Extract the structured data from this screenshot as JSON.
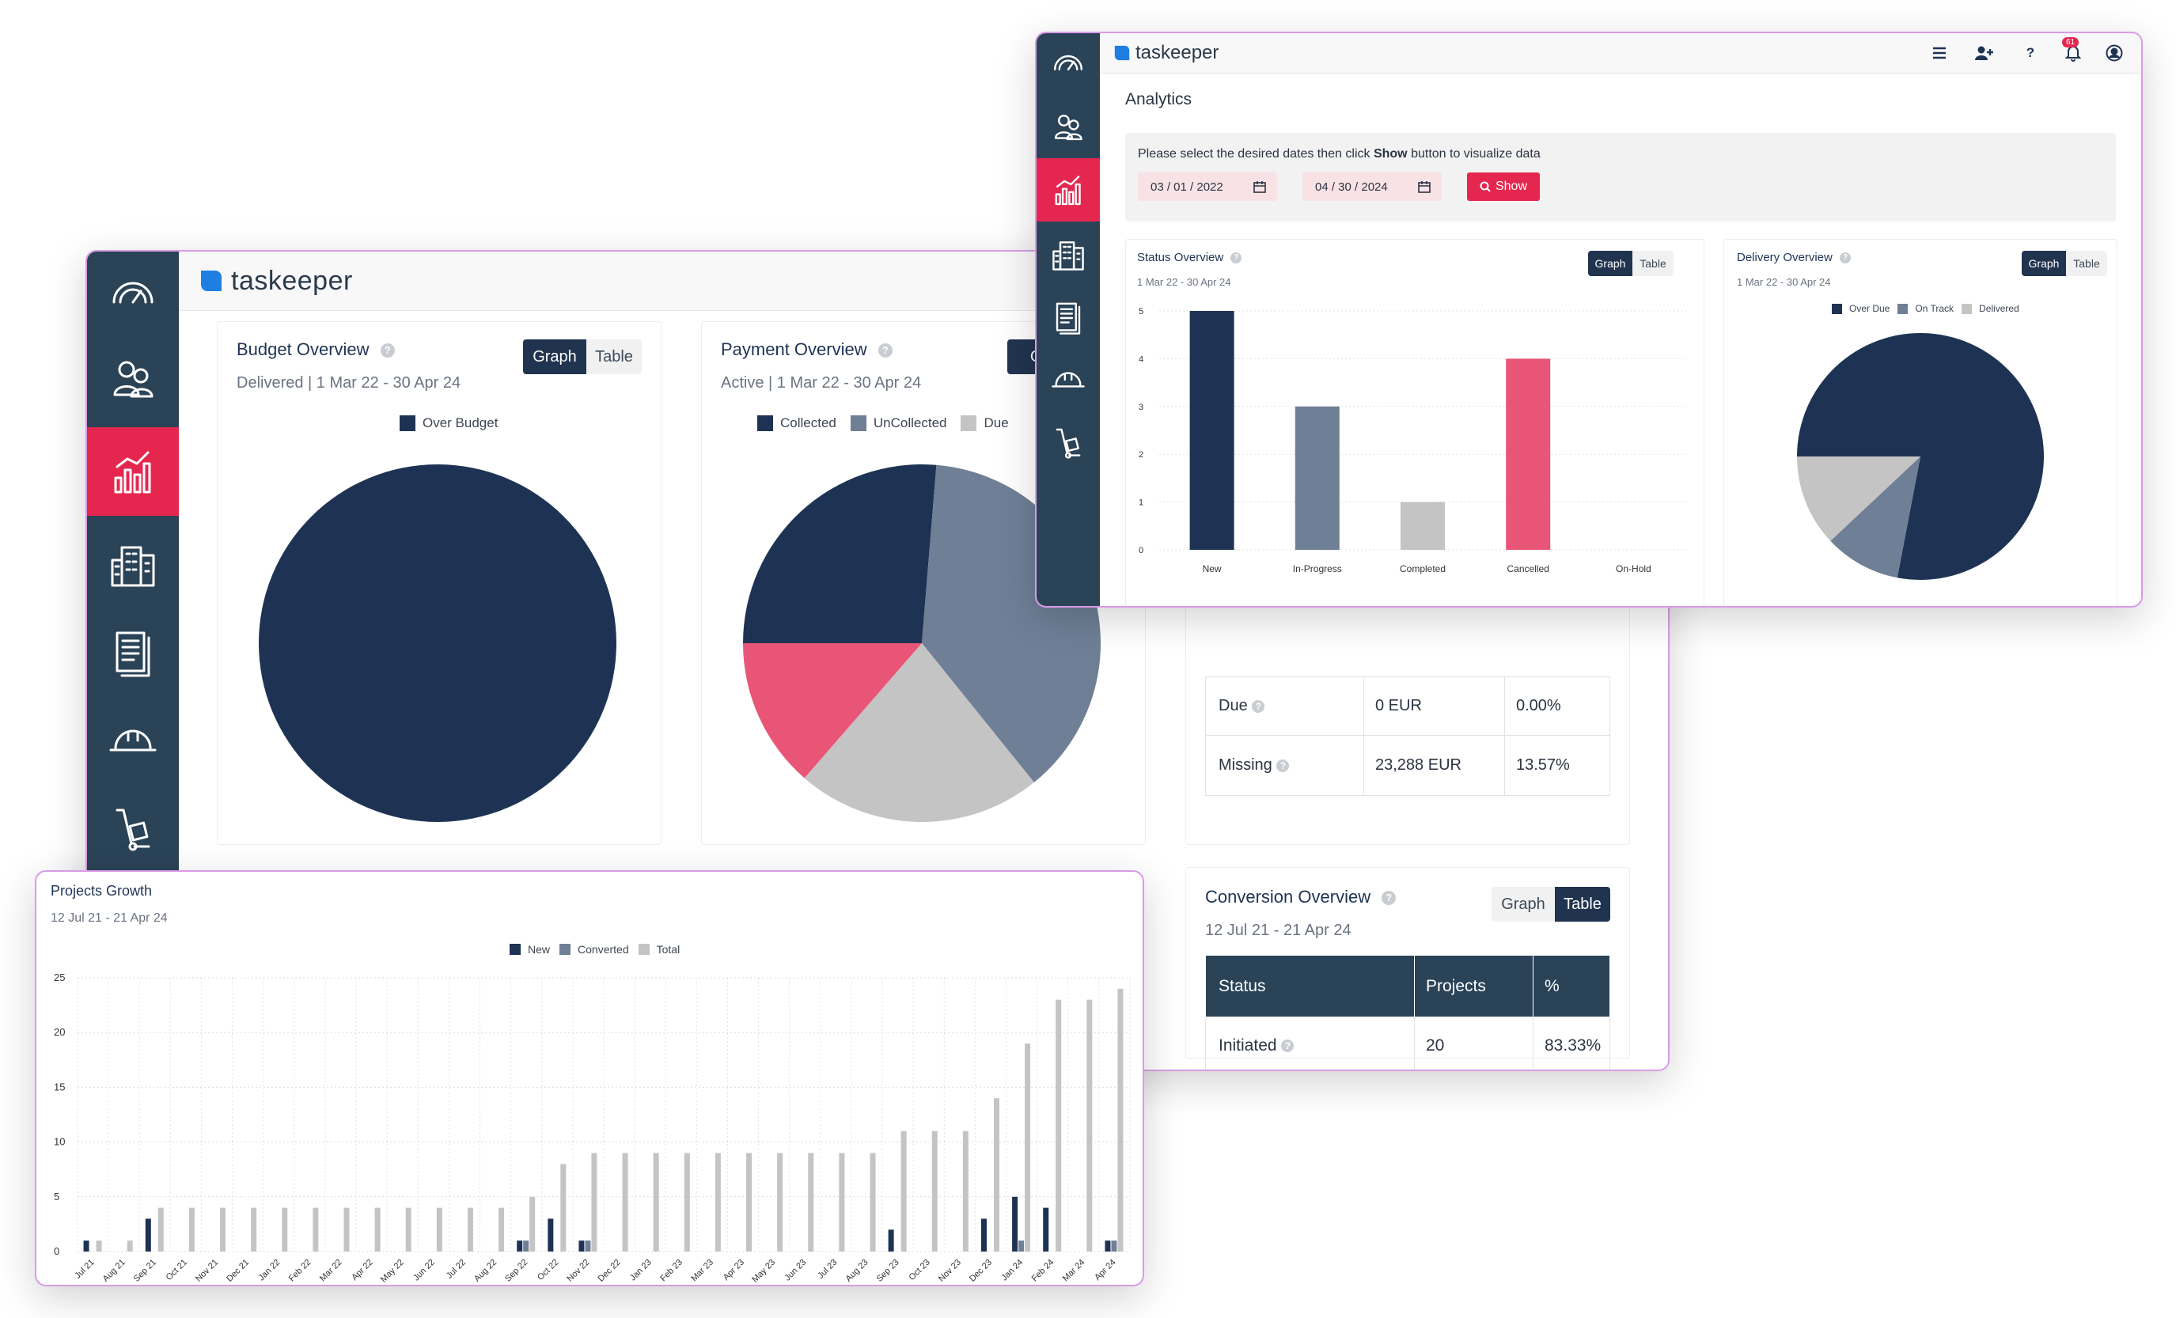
{
  "brand": "taskeeper",
  "colors": {
    "navy": "#1e3354",
    "slate": "#6f7f96",
    "grey": "#c4c4c4",
    "pink": "#e95577",
    "red": "#e5274f",
    "sidebar": "#2b4357"
  },
  "sidebar_icons": [
    "dashboard-gauge-icon",
    "users-icon",
    "analytics-chart-icon",
    "buildings-icon",
    "documents-icon",
    "hard-hat-icon",
    "hand-truck-icon"
  ],
  "back": {
    "budget": {
      "title": "Budget Overview",
      "subtitle": "Delivered | 1 Mar 22 - 30 Apr 24",
      "graph": "Graph",
      "table": "Table",
      "legend": [
        {
          "label": "Over Budget",
          "color": "#1e3354"
        }
      ],
      "chart_data": {
        "type": "pie",
        "labels": [
          "Over Budget"
        ],
        "values": [
          100
        ],
        "colors": [
          "#1e3354"
        ]
      }
    },
    "payment": {
      "title": "Payment Overview",
      "subtitle": "Active | 1 Mar 22 - 30 Apr 24",
      "graph": "Gr",
      "legend": [
        {
          "label": "Collected",
          "color": "#1e3354"
        },
        {
          "label": "UnCollected",
          "color": "#6f7f96"
        },
        {
          "label": "Due",
          "color": "#c4c4c4"
        }
      ],
      "chart_data": {
        "type": "pie",
        "labels": [
          "Collected",
          "UnCollected",
          "Due",
          "Missing"
        ],
        "values": [
          26.3,
          37.9,
          22.2,
          13.6
        ],
        "colors": [
          "#1e3354",
          "#6f7f96",
          "#c4c4c4",
          "#e95577"
        ]
      }
    },
    "payment_table": {
      "rows": [
        {
          "status": "Due",
          "amount": "0 EUR",
          "pct": "0.00%"
        },
        {
          "status": "Missing",
          "amount": "23,288 EUR",
          "pct": "13.57%"
        }
      ]
    },
    "conversion": {
      "title": "Conversion Overview",
      "subtitle": "12 Jul 21 - 21 Apr 24",
      "graph": "Graph",
      "table": "Table",
      "headers": [
        "Status",
        "Projects",
        "%"
      ],
      "rows": [
        {
          "status": "Initiated",
          "projects": "20",
          "pct": "83.33%"
        }
      ]
    }
  },
  "front": {
    "header_icons": [
      "menu-icon",
      "add-user-icon",
      "help-icon",
      "bell-icon",
      "account-icon"
    ],
    "badge": "61",
    "help": "?",
    "page_title": "Analytics",
    "filter": {
      "text_before": "Please select the desired dates then click ",
      "text_bold": "Show",
      "text_after": " button to visualize data",
      "start_date": "03 / 01 / 2022",
      "end_date": "04 / 30 / 2024",
      "show_button": "Show"
    },
    "status": {
      "title": "Status Overview",
      "subtitle": "1 Mar 22 - 30 Apr 24",
      "graph": "Graph",
      "table": "Table",
      "chart_data": {
        "type": "bar",
        "categories": [
          "New",
          "In-Progress",
          "Completed",
          "Cancelled",
          "On-Hold"
        ],
        "values": [
          5,
          3,
          1,
          4,
          0
        ],
        "colors": [
          "#1e3354",
          "#6f7f96",
          "#c4c4c4",
          "#e95577",
          "#c4c4c4"
        ],
        "ylim": [
          0,
          5
        ],
        "yticks": [
          0,
          1,
          2,
          3,
          4,
          5
        ]
      }
    },
    "delivery": {
      "title": "Delivery Overview",
      "subtitle": "1 Mar 22 - 30 Apr 24",
      "graph": "Graph",
      "table": "Table",
      "legend": [
        {
          "label": "Over Due",
          "color": "#1e3354"
        },
        {
          "label": "On Track",
          "color": "#6f7f96"
        },
        {
          "label": "Delivered",
          "color": "#c4c4c4"
        }
      ],
      "chart_data": {
        "type": "pie",
        "labels": [
          "Over Due",
          "On Track",
          "Delivered"
        ],
        "values": [
          78,
          10,
          12
        ],
        "colors": [
          "#1e3354",
          "#6f7f96",
          "#c4c4c4"
        ]
      }
    }
  },
  "growth": {
    "title": "Projects Growth",
    "subtitle": "12 Jul 21 - 21 Apr 24",
    "legend": [
      {
        "label": "New",
        "color": "#1e3354"
      },
      {
        "label": "Converted",
        "color": "#6f7f96"
      },
      {
        "label": "Total",
        "color": "#c4c4c4"
      }
    ],
    "chart_data": {
      "type": "bar",
      "ylim": [
        0,
        25
      ],
      "yticks": [
        0,
        5,
        10,
        15,
        20,
        25
      ],
      "categories": [
        "Jul 21",
        "Aug 21",
        "Sep 21",
        "Oct 21",
        "Nov 21",
        "Dec 21",
        "Jan 22",
        "Feb 22",
        "Mar 22",
        "Apr 22",
        "May 22",
        "Jun 22",
        "Jul 22",
        "Aug 22",
        "Sep 22",
        "Oct 22",
        "Nov 22",
        "Dec 22",
        "Jan 23",
        "Feb 23",
        "Mar 23",
        "Apr 23",
        "May 23",
        "Jun 23",
        "Jul 23",
        "Aug 23",
        "Sep 23",
        "Oct 23",
        "Nov 23",
        "Dec 23",
        "Jan 24",
        "Feb 24",
        "Mar 24",
        "Apr 24"
      ],
      "series": [
        {
          "name": "New",
          "color": "#1e3354",
          "values": [
            1,
            0,
            3,
            0,
            0,
            0,
            0,
            0,
            0,
            0,
            0,
            0,
            0,
            0,
            1,
            3,
            1,
            0,
            0,
            0,
            0,
            0,
            0,
            0,
            0,
            0,
            2,
            0,
            0,
            3,
            5,
            4,
            0,
            1
          ]
        },
        {
          "name": "Converted",
          "color": "#6f7f96",
          "values": [
            0,
            0,
            0,
            0,
            0,
            0,
            0,
            0,
            0,
            0,
            0,
            0,
            0,
            0,
            1,
            0,
            1,
            0,
            0,
            0,
            0,
            0,
            0,
            0,
            0,
            0,
            0,
            0,
            0,
            0,
            1,
            0,
            0,
            1
          ]
        },
        {
          "name": "Total",
          "color": "#c4c4c4",
          "values": [
            1,
            1,
            4,
            4,
            4,
            4,
            4,
            4,
            4,
            4,
            4,
            4,
            4,
            4,
            5,
            8,
            9,
            9,
            9,
            9,
            9,
            9,
            9,
            9,
            9,
            9,
            11,
            11,
            11,
            14,
            19,
            23,
            23,
            24
          ]
        }
      ]
    }
  }
}
